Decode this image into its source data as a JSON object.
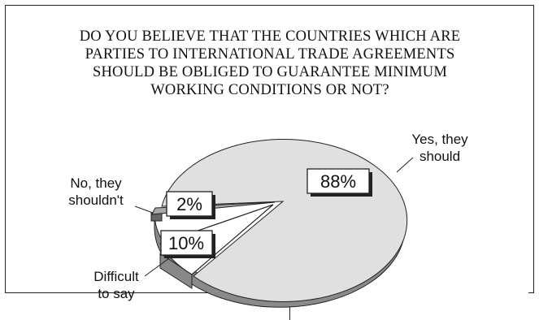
{
  "title_lines": [
    "DO YOU BELIEVE THAT THE COUNTRIES WHICH ARE",
    "PARTIES TO INTERNATIONAL TRADE AGREEMENTS",
    "SHOULD BE OBLIGED TO GUARANTEE MINIMUM",
    "WORKING CONDITIONS OR NOT?"
  ],
  "chart_data": {
    "type": "pie",
    "title": "DO YOU BELIEVE THAT THE COUNTRIES WHICH ARE PARTIES TO INTERNATIONAL TRADE AGREEMENTS SHOULD BE OBLIGED TO GUARANTEE MINIMUM WORKING CONDITIONS OR NOT?",
    "slices": [
      {
        "label": "Yes, they should",
        "value": 88,
        "value_label": "88%",
        "color": "#e0e0e0",
        "exploded": false
      },
      {
        "label": "No, they shouldn't",
        "value": 2,
        "value_label": "2%",
        "color": "#a8a8a8",
        "exploded": true
      },
      {
        "label": "Difficult to say",
        "value": 10,
        "value_label": "10%",
        "color": "#ffffff",
        "exploded": true
      }
    ],
    "legend": "none",
    "style": "3d-tilted"
  },
  "labels": {
    "yes_line1": "Yes, they",
    "yes_line2": "should",
    "no_line1": "No, they",
    "no_line2": "shouldn't",
    "diff_line1": "Difficult",
    "diff_line2": "to say",
    "pct_yes": "88%",
    "pct_no": "2%",
    "pct_diff": "10%"
  }
}
